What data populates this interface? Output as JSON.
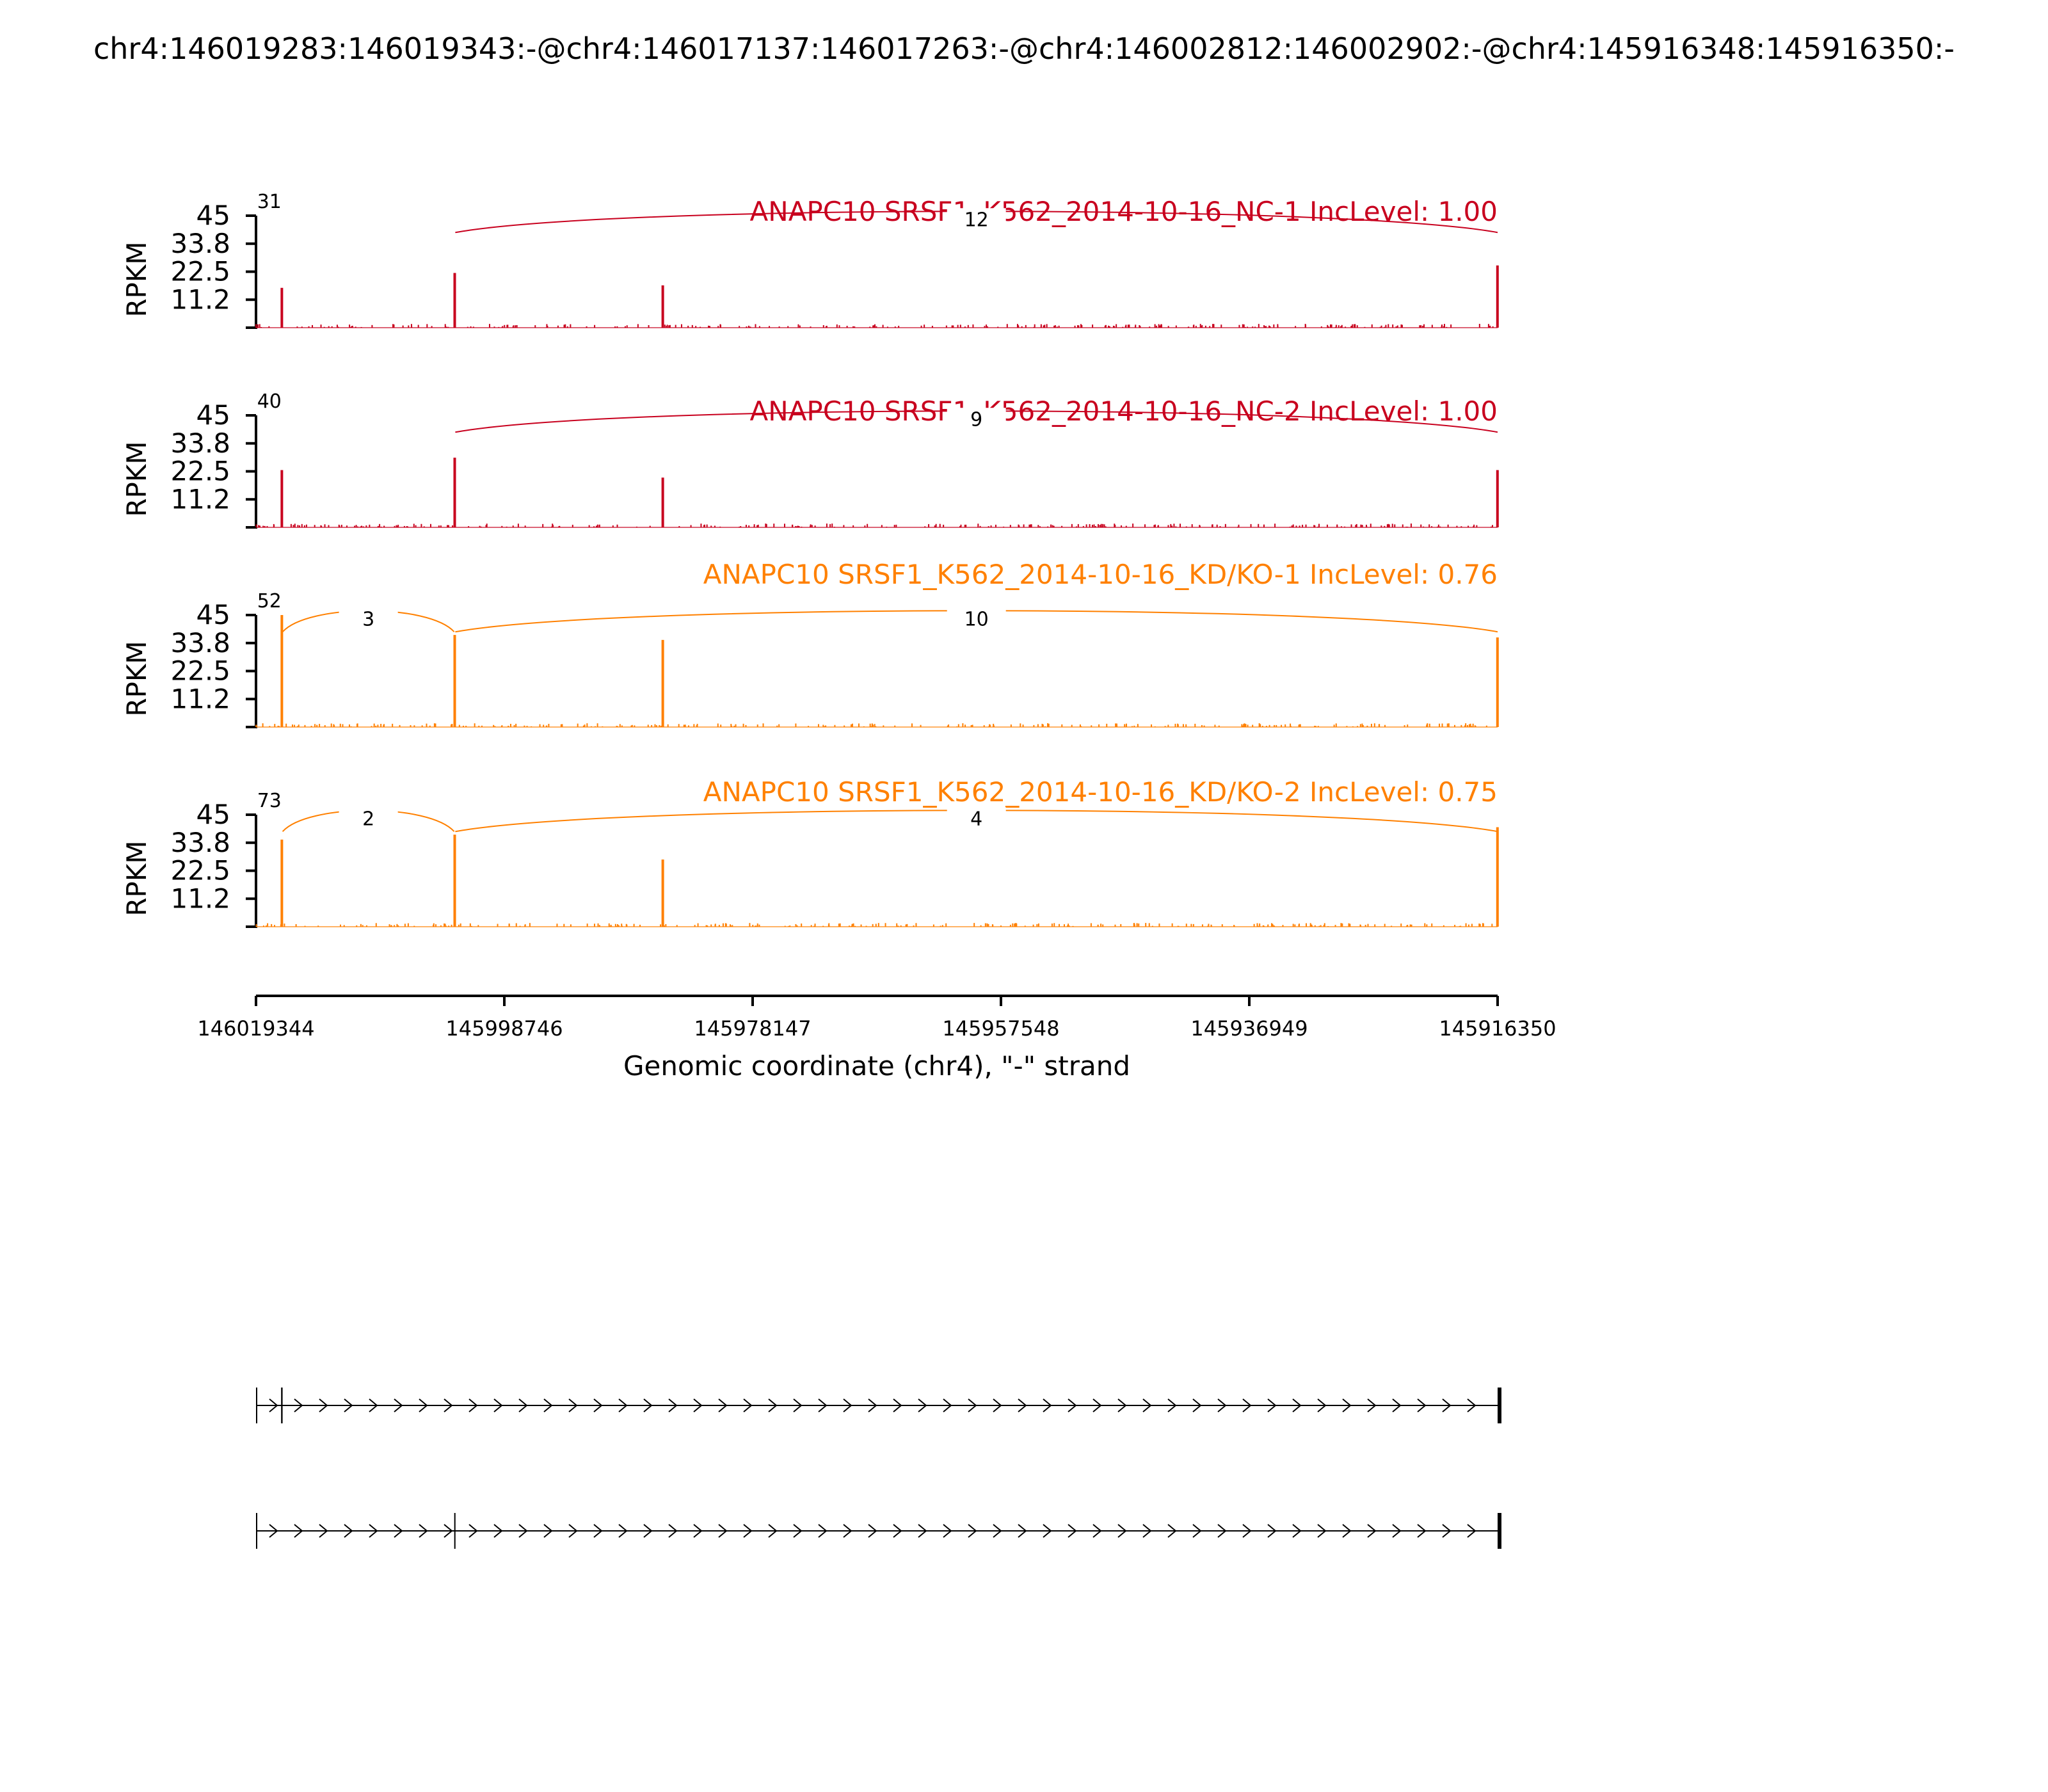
{
  "suptitle": "chr4:146019283:146019343:-@chr4:146017137:146017263:-@chr4:146002812:146002902:-@chr4:145916348:145916350:-",
  "chart_data": {
    "type": "sashimi",
    "xlabel": "Genomic coordinate (chr4), \"-\" strand",
    "xlim": [
      146019344,
      145916350
    ],
    "xticks": [
      "146019344",
      "145998746",
      "145978147",
      "145957548",
      "145936949",
      "145916350"
    ],
    "ylabel": "RPKM",
    "ylim": [
      0,
      45
    ],
    "yticks": [
      "45",
      "33.8",
      "22.5",
      "11.2"
    ],
    "colors": {
      "NC": "#C8001E",
      "KD": "#FF8000"
    },
    "panels": [
      {
        "title": "ANAPC10 SRSF1_K562_2014-10-16_NC-1 IncLevel: 1.00",
        "group": "NC",
        "peaks": [
          {
            "coord": 146017200,
            "rpkm": 16
          },
          {
            "coord": 146002860,
            "rpkm": 22
          },
          {
            "coord": 145985600,
            "rpkm": 17
          },
          {
            "coord": 145916360,
            "rpkm": 25
          }
        ],
        "junctions": [
          {
            "from": 146019343,
            "to": 146017137,
            "count": "31"
          },
          {
            "from": 146002812,
            "to": 145916350,
            "count": "12"
          }
        ]
      },
      {
        "title": "ANAPC10 SRSF1_K562_2014-10-16_NC-2 IncLevel: 1.00",
        "group": "NC",
        "peaks": [
          {
            "coord": 146017200,
            "rpkm": 23
          },
          {
            "coord": 146002860,
            "rpkm": 28
          },
          {
            "coord": 145985600,
            "rpkm": 20
          },
          {
            "coord": 145916360,
            "rpkm": 23
          }
        ],
        "junctions": [
          {
            "from": 146019343,
            "to": 146017137,
            "count": "40"
          },
          {
            "from": 146002812,
            "to": 145916350,
            "count": "9"
          }
        ]
      },
      {
        "title": "ANAPC10 SRSF1_K562_2014-10-16_KD/KO-1 IncLevel: 0.76",
        "group": "KD",
        "peaks": [
          {
            "coord": 146017200,
            "rpkm": 45
          },
          {
            "coord": 146002860,
            "rpkm": 37
          },
          {
            "coord": 145985600,
            "rpkm": 35
          },
          {
            "coord": 145916360,
            "rpkm": 36
          }
        ],
        "junctions": [
          {
            "from": 146019343,
            "to": 146017137,
            "count": "52"
          },
          {
            "from": 146017137,
            "to": 146002902,
            "count": "3"
          },
          {
            "from": 146002812,
            "to": 145916350,
            "count": "10"
          }
        ]
      },
      {
        "title": "ANAPC10 SRSF1_K562_2014-10-16_KD/KO-2 IncLevel: 0.75",
        "group": "KD",
        "peaks": [
          {
            "coord": 146017200,
            "rpkm": 35
          },
          {
            "coord": 146002860,
            "rpkm": 37
          },
          {
            "coord": 145985600,
            "rpkm": 27
          },
          {
            "coord": 145916360,
            "rpkm": 40
          }
        ],
        "junctions": [
          {
            "from": 146019343,
            "to": 146017137,
            "count": "73"
          },
          {
            "from": 146017137,
            "to": 146002902,
            "count": "2"
          },
          {
            "from": 146002812,
            "to": 145916350,
            "count": "4"
          }
        ]
      }
    ],
    "isoforms": [
      {
        "exons": [
          [
            146019344,
            146019283
          ],
          [
            146017263,
            146017137
          ],
          [
            145916350,
            145916348
          ]
        ]
      },
      {
        "exons": [
          [
            146019344,
            146019283
          ],
          [
            146002902,
            146002812
          ],
          [
            145916350,
            145916348
          ]
        ]
      }
    ]
  }
}
